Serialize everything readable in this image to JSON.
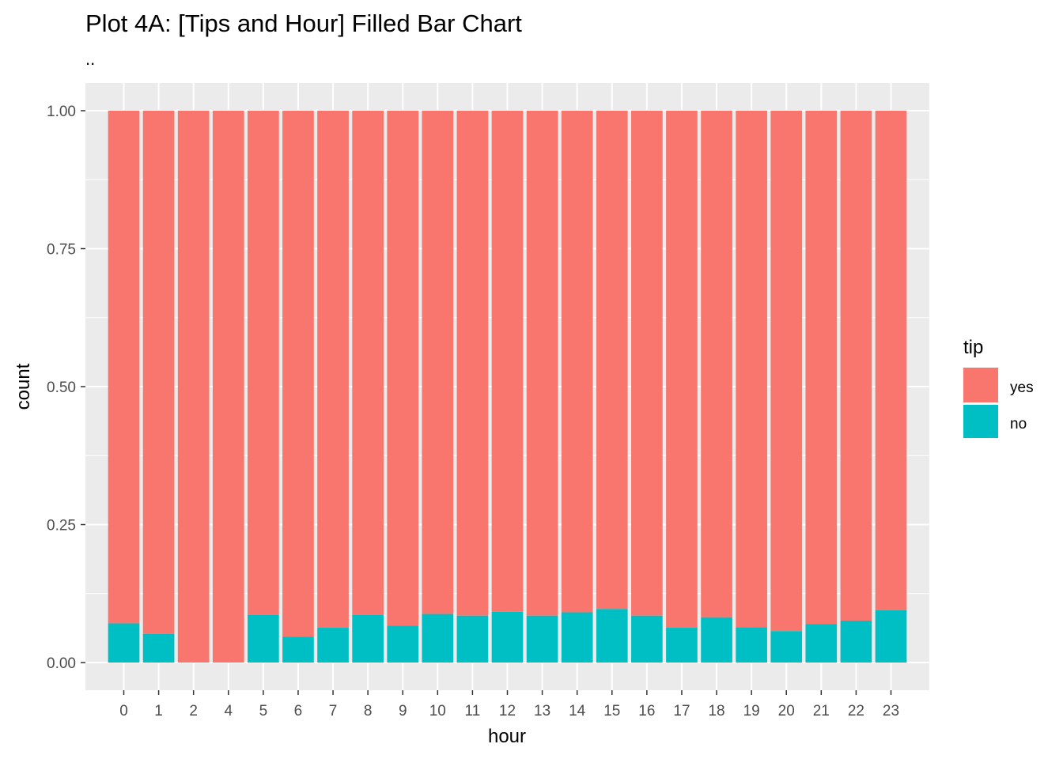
{
  "chart_data": {
    "type": "bar",
    "stacked": true,
    "position": "fill",
    "title": "Plot 4A: [Tips and Hour] Filled Bar Chart",
    "subtitle": "..",
    "xlabel": "hour",
    "ylabel": "count",
    "ylim": [
      0,
      1
    ],
    "yticks": [
      "0.00",
      "0.25",
      "0.50",
      "0.75",
      "1.00"
    ],
    "ytick_values": [
      0,
      0.25,
      0.5,
      0.75,
      1.0
    ],
    "grid": true,
    "legend_title": "tip",
    "legend_position": "right",
    "categories": [
      "0",
      "1",
      "2",
      "4",
      "5",
      "6",
      "7",
      "8",
      "9",
      "10",
      "11",
      "12",
      "13",
      "14",
      "15",
      "16",
      "17",
      "18",
      "19",
      "20",
      "21",
      "22",
      "23"
    ],
    "series": [
      {
        "name": "yes",
        "color": "#F8766D",
        "values": [
          0.929,
          0.948,
          1.0,
          1.0,
          0.914,
          0.953,
          0.937,
          0.914,
          0.933,
          0.912,
          0.915,
          0.908,
          0.915,
          0.909,
          0.903,
          0.915,
          0.937,
          0.918,
          0.936,
          0.943,
          0.93,
          0.924,
          0.905
        ]
      },
      {
        "name": "no",
        "color": "#00BFC4",
        "values": [
          0.071,
          0.052,
          0.0,
          0.0,
          0.086,
          0.047,
          0.063,
          0.086,
          0.067,
          0.088,
          0.085,
          0.092,
          0.085,
          0.091,
          0.097,
          0.085,
          0.063,
          0.082,
          0.064,
          0.057,
          0.07,
          0.076,
          0.095
        ]
      }
    ]
  },
  "colors": {
    "panel_background": "#EBEBEB",
    "grid_major": "#FFFFFF",
    "tick_text": "#4D4D4D",
    "tick_mark": "#333333"
  }
}
